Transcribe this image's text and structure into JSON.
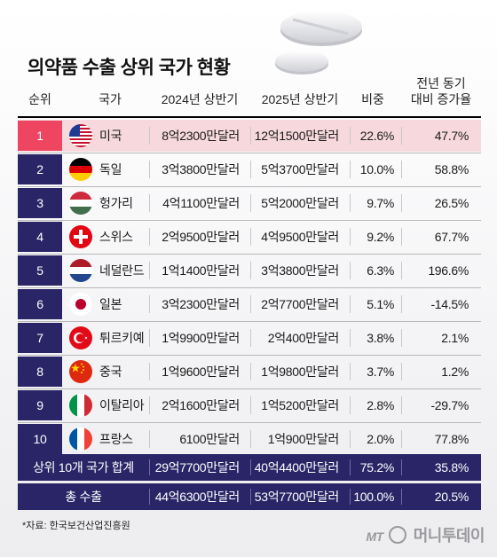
{
  "title": "의약품 수출 상위 국가 현황",
  "headers": {
    "rank": "순위",
    "country": "국가",
    "h2024": "2024년 상반기",
    "h2025": "2025년 상반기",
    "share": "비중",
    "growth_line1": "전년 동기",
    "growth_line2": "대비 증가율"
  },
  "rows": [
    {
      "rank": "1",
      "country": "미국",
      "flag": "usa-flag-icon",
      "v2024": "8억2300만달러",
      "v2025": "12억1500만달러",
      "share": "22.6%",
      "growth": "47.7%"
    },
    {
      "rank": "2",
      "country": "독일",
      "flag": "germany-flag-icon",
      "v2024": "3억3800만달러",
      "v2025": "5억3700만달러",
      "share": "10.0%",
      "growth": "58.8%"
    },
    {
      "rank": "3",
      "country": "헝가리",
      "flag": "hungary-flag-icon",
      "v2024": "4억1100만달러",
      "v2025": "5억2000만달러",
      "share": "9.7%",
      "growth": "26.5%"
    },
    {
      "rank": "4",
      "country": "스위스",
      "flag": "switzerland-flag-icon",
      "v2024": "2억9500만달러",
      "v2025": "4억9500만달러",
      "share": "9.2%",
      "growth": "67.7%"
    },
    {
      "rank": "5",
      "country": "네덜란드",
      "flag": "netherlands-flag-icon",
      "v2024": "1억1400만달러",
      "v2025": "3억3800만달러",
      "share": "6.3%",
      "growth": "196.6%"
    },
    {
      "rank": "6",
      "country": "일본",
      "flag": "japan-flag-icon",
      "v2024": "3억2300만달러",
      "v2025": "2억7700만달러",
      "share": "5.1%",
      "growth": "-14.5%"
    },
    {
      "rank": "7",
      "country": "튀르키예",
      "flag": "turkey-flag-icon",
      "v2024": "1억9900만달러",
      "v2025": "2억400만달러",
      "share": "3.8%",
      "growth": "2.1%"
    },
    {
      "rank": "8",
      "country": "중국",
      "flag": "china-flag-icon",
      "v2024": "1억9600만달러",
      "v2025": "1억9800만달러",
      "share": "3.7%",
      "growth": "1.2%"
    },
    {
      "rank": "9",
      "country": "이탈리아",
      "flag": "italy-flag-icon",
      "v2024": "2억1600만달러",
      "v2025": "1억5200만달러",
      "share": "2.8%",
      "growth": "-29.7%"
    },
    {
      "rank": "10",
      "country": "프랑스",
      "flag": "france-flag-icon",
      "v2024": "6100만달러",
      "v2025": "1억900만달러",
      "share": "2.0%",
      "growth": "77.8%"
    }
  ],
  "totals": [
    {
      "label": "상위 10개 국가 합계",
      "v2024": "29억7700만달러",
      "v2025": "40억4400만달러",
      "share": "75.2%",
      "growth": "35.8%"
    },
    {
      "label": "총 수출",
      "v2024": "44억6300만달러",
      "v2025": "53억7700만달러",
      "share": "100.0%",
      "growth": "20.5%"
    }
  ],
  "source": "*자료: 한국보건산업진흥원",
  "logo": {
    "prefix": "MT",
    "name": "머니투데이"
  },
  "colors": {
    "navy": "#2a2567",
    "highlight_red": "#ee4560",
    "highlight_bg": "#f7d9dd"
  }
}
